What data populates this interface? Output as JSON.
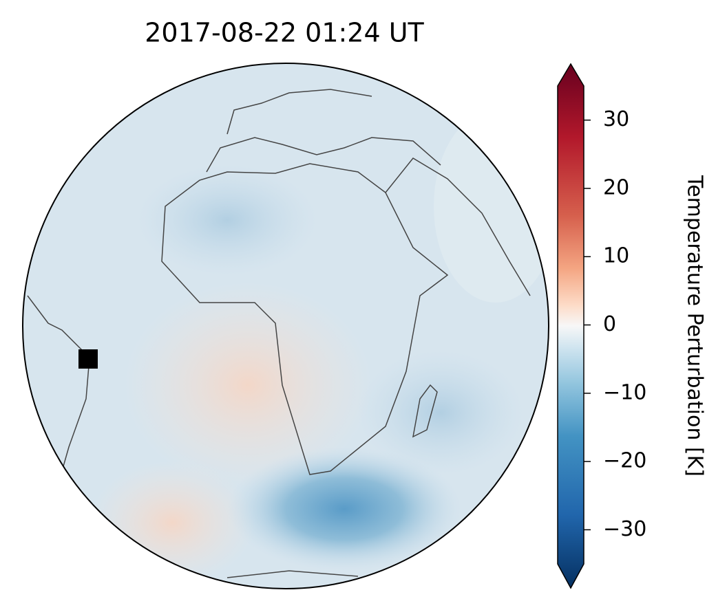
{
  "chart_data": {
    "type": "map",
    "title": "2017-08-22  01:24 UT",
    "colorbar": {
      "label": "Temperature Perturbation [K]",
      "lim": [
        -35,
        35
      ],
      "colormap": "RdBu_r",
      "ticks": [
        {
          "value": -30,
          "label": "−30"
        },
        {
          "value": -20,
          "label": "−20"
        },
        {
          "value": -10,
          "label": "−10"
        },
        0,
        10,
        20,
        30
      ]
    }
  }
}
